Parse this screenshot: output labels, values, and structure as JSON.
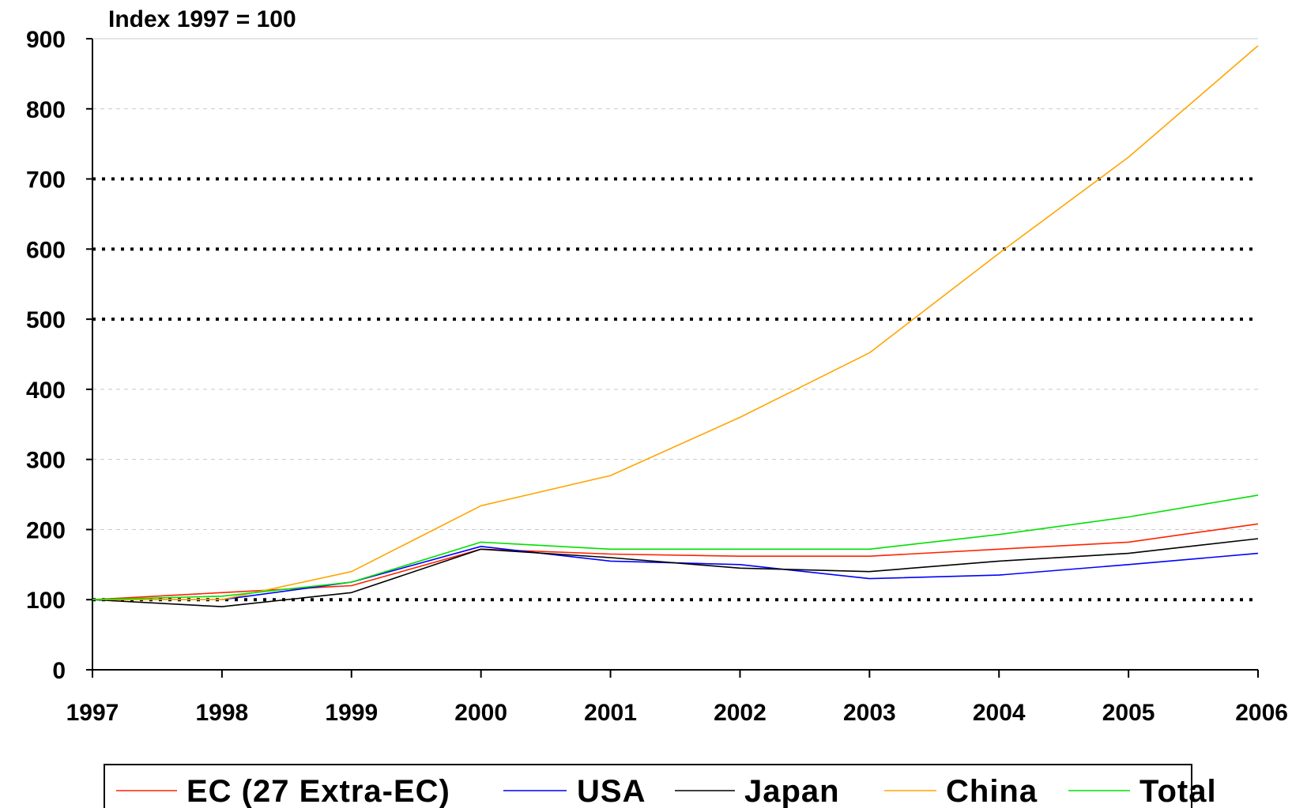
{
  "chart_data": {
    "type": "line",
    "title": "Index 1997 = 100",
    "xlabel": "",
    "ylabel": "",
    "categories": [
      "1997",
      "1998",
      "1999",
      "2000",
      "2001",
      "2002",
      "2003",
      "2004",
      "2005",
      "2006"
    ],
    "ylim": [
      0,
      900
    ],
    "yticks": [
      "0",
      "100",
      "200",
      "300",
      "400",
      "500",
      "600",
      "700",
      "800",
      "900"
    ],
    "reference_lines": [
      100,
      500,
      600,
      700
    ],
    "grid": true,
    "legend_position": "bottom",
    "series": [
      {
        "name": "EC (27 Extra-EC)",
        "color": "#ff2200",
        "values": [
          100,
          110,
          120,
          172,
          165,
          162,
          162,
          172,
          182,
          208
        ]
      },
      {
        "name": "USA",
        "color": "#0000ff",
        "values": [
          100,
          100,
          125,
          176,
          155,
          150,
          130,
          135,
          150,
          166
        ]
      },
      {
        "name": "Japan",
        "color": "#000000",
        "values": [
          100,
          90,
          110,
          172,
          160,
          145,
          140,
          155,
          166,
          187
        ]
      },
      {
        "name": "China",
        "color": "#ffa500",
        "values": [
          100,
          100,
          140,
          234,
          277,
          360,
          452,
          594,
          731,
          890
        ]
      },
      {
        "name": "Total",
        "color": "#00e000",
        "values": [
          100,
          105,
          125,
          182,
          172,
          172,
          172,
          193,
          218,
          249
        ]
      }
    ]
  }
}
